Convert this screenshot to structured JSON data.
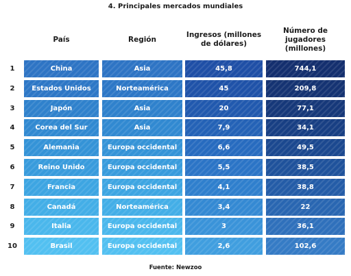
{
  "title": "4. Principales mercados mundiales",
  "headers": {
    "country": "País",
    "region": "Región",
    "revenue": "Ingresos (millones de dólares)",
    "players": "Número de jugadores (millones)"
  },
  "rows": [
    {
      "rank": "1",
      "country": "China",
      "region": "Asia",
      "revenue": "45,8",
      "players": "744,1"
    },
    {
      "rank": "2",
      "country": "Estados Unidos",
      "region": "Norteamérica",
      "revenue": "45",
      "players": "209,8"
    },
    {
      "rank": "3",
      "country": "Japón",
      "region": "Asia",
      "revenue": "20",
      "players": "77,1"
    },
    {
      "rank": "4",
      "country": "Corea del Sur",
      "region": "Asia",
      "revenue": "7,9",
      "players": "34,1"
    },
    {
      "rank": "5",
      "country": "Alemania",
      "region": "Europa occidental",
      "revenue": "6,6",
      "players": "49,5"
    },
    {
      "rank": "6",
      "country": "Reino Unido",
      "region": "Europa occidental",
      "revenue": "5,5",
      "players": "38,5"
    },
    {
      "rank": "7",
      "country": "Francia",
      "region": "Europa occidental",
      "revenue": "4,1",
      "players": "38,8"
    },
    {
      "rank": "8",
      "country": "Canadá",
      "region": "Norteamérica",
      "revenue": "3,4",
      "players": "22"
    },
    {
      "rank": "9",
      "country": "Italia",
      "region": "Europa occidental",
      "revenue": "3",
      "players": "36,1"
    },
    {
      "rank": "10",
      "country": "Brasil",
      "region": "Europa occidental",
      "revenue": "2,6",
      "players": "102,6"
    }
  ],
  "colors": {
    "row_palette": [
      [
        "#2e74c4",
        "#2e74c4",
        "#1f4fa6",
        "#142f6e"
      ],
      [
        "#2d77c6",
        "#2d77c6",
        "#1f52a8",
        "#153372"
      ],
      [
        "#2f81cc",
        "#2f81cc",
        "#2159ae",
        "#163879"
      ],
      [
        "#3189d1",
        "#3189d1",
        "#2462b6",
        "#183f83"
      ],
      [
        "#3493d7",
        "#3493d7",
        "#276bbf",
        "#1b488f"
      ],
      [
        "#389bdc",
        "#389bdc",
        "#2b74c6",
        "#1f529b"
      ],
      [
        "#3da5e2",
        "#3da5e2",
        "#2f7fcd",
        "#245ca7"
      ],
      [
        "#43aee7",
        "#43aee7",
        "#3489d3",
        "#2966b1"
      ],
      [
        "#4ab7ec",
        "#4ab7ec",
        "#3a93d9",
        "#2f70bb"
      ],
      [
        "#52c0f1",
        "#52c0f1",
        "#409edf",
        "#357bc5"
      ]
    ]
  },
  "source": "Fuente: Newzoo"
}
